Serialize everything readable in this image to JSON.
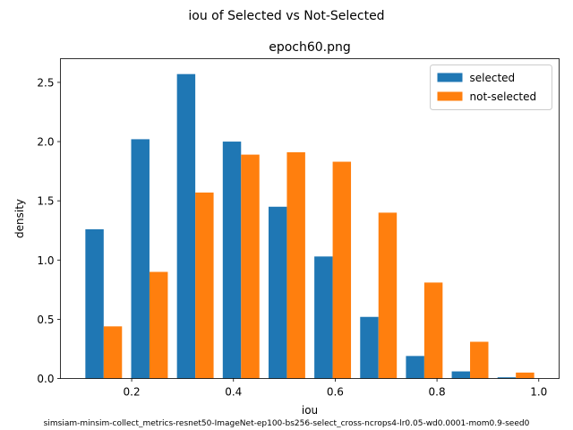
{
  "figure": {
    "suptitle": "iou of Selected vs Not-Selected",
    "footer": "simsiam-minsim-collect_metrics-resnet50-ImageNet-ep100-bs256-select_cross-ncrops4-lr0.05-wd0.0001-mom0.9-seed0"
  },
  "chart_data": {
    "type": "bar",
    "title": "epoch60.png",
    "xlabel": "iou",
    "ylabel": "density",
    "xlim": [
      0.06,
      1.04
    ],
    "ylim": [
      0,
      2.7
    ],
    "xticks": [
      0.2,
      0.4,
      0.6,
      0.8,
      1.0
    ],
    "xtick_labels": [
      "0.2",
      "0.4",
      "0.6",
      "0.8",
      "1.0"
    ],
    "yticks": [
      0.0,
      0.5,
      1.0,
      1.5,
      2.0,
      2.5
    ],
    "ytick_labels": [
      "0.0",
      "0.5",
      "1.0",
      "1.5",
      "2.0",
      "2.5"
    ],
    "bin_edges": [
      0.1,
      0.19,
      0.28,
      0.37,
      0.46,
      0.55,
      0.64,
      0.73,
      0.82,
      0.91,
      1.0
    ],
    "series": [
      {
        "name": "selected",
        "color": "#1f77b4",
        "values": [
          1.26,
          2.02,
          2.57,
          2.0,
          1.45,
          1.03,
          0.52,
          0.19,
          0.06,
          0.01
        ]
      },
      {
        "name": "not-selected",
        "color": "#ff7f0e",
        "values": [
          0.44,
          0.9,
          1.57,
          1.89,
          1.91,
          1.83,
          1.4,
          0.81,
          0.31,
          0.05
        ]
      }
    ],
    "legend_position": "top-right",
    "grid": false
  }
}
